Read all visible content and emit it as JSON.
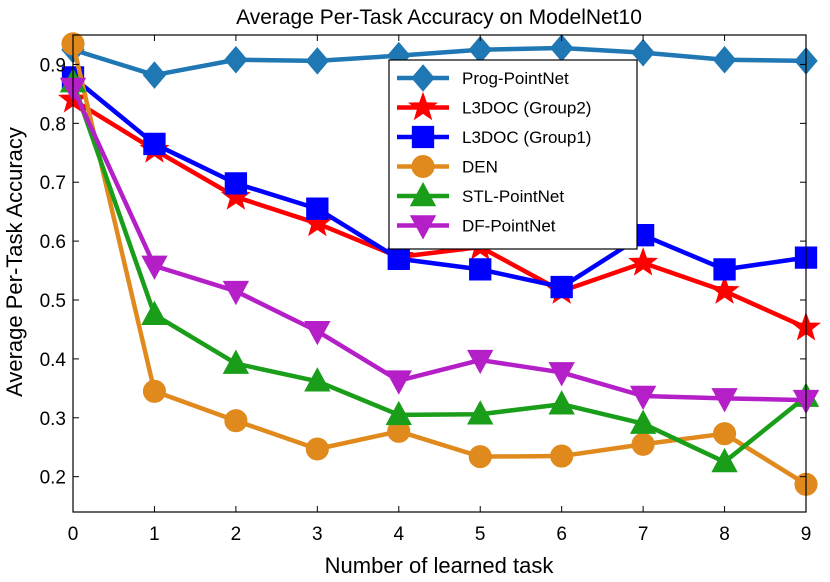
{
  "chart_data": {
    "type": "line",
    "title": "Average Per-Task Accuracy on ModelNet10",
    "xlabel": "Number of learned task",
    "ylabel": "Average Per-Task Accuracy",
    "xlim": [
      0,
      9
    ],
    "ylim": [
      0.14,
      0.95
    ],
    "xticks": [
      0,
      1,
      2,
      3,
      4,
      5,
      6,
      7,
      8,
      9
    ],
    "yticks": [
      0.2,
      0.3,
      0.4,
      0.5,
      0.6,
      0.7,
      0.8,
      0.9
    ],
    "legend_position": "top-right",
    "x": [
      0,
      1,
      2,
      3,
      4,
      5,
      6,
      7,
      8,
      9
    ],
    "series": [
      {
        "name": "Prog-PointNet",
        "color": "#1f77b4",
        "marker": "diamond",
        "values": [
          0.925,
          0.882,
          0.908,
          0.906,
          0.915,
          0.925,
          0.928,
          0.92,
          0.908,
          0.906
        ]
      },
      {
        "name": "L3DOC (Group2)",
        "color": "#ff0000",
        "marker": "star",
        "values": [
          0.84,
          0.755,
          0.675,
          0.63,
          0.573,
          0.59,
          0.515,
          0.563,
          0.515,
          0.453
        ]
      },
      {
        "name": "L3DOC (Group1)",
        "color": "#0000ff",
        "marker": "square",
        "values": [
          0.878,
          0.765,
          0.698,
          0.655,
          0.57,
          0.552,
          0.522,
          0.61,
          0.552,
          0.572
        ]
      },
      {
        "name": "DEN",
        "color": "#e08a1e",
        "marker": "circle",
        "values": [
          0.935,
          0.345,
          0.295,
          0.247,
          0.277,
          0.234,
          0.235,
          0.255,
          0.273,
          0.187
        ]
      },
      {
        "name": "STL-PointNet",
        "color": "#1a9e1a",
        "marker": "triangle-up",
        "values": [
          0.87,
          0.475,
          0.392,
          0.362,
          0.305,
          0.306,
          0.323,
          0.29,
          0.225,
          0.336
        ]
      },
      {
        "name": "DF-PointNet",
        "color": "#b41fc8",
        "marker": "triangle-down",
        "values": [
          0.86,
          0.558,
          0.515,
          0.447,
          0.363,
          0.398,
          0.377,
          0.337,
          0.333,
          0.33
        ]
      }
    ]
  }
}
